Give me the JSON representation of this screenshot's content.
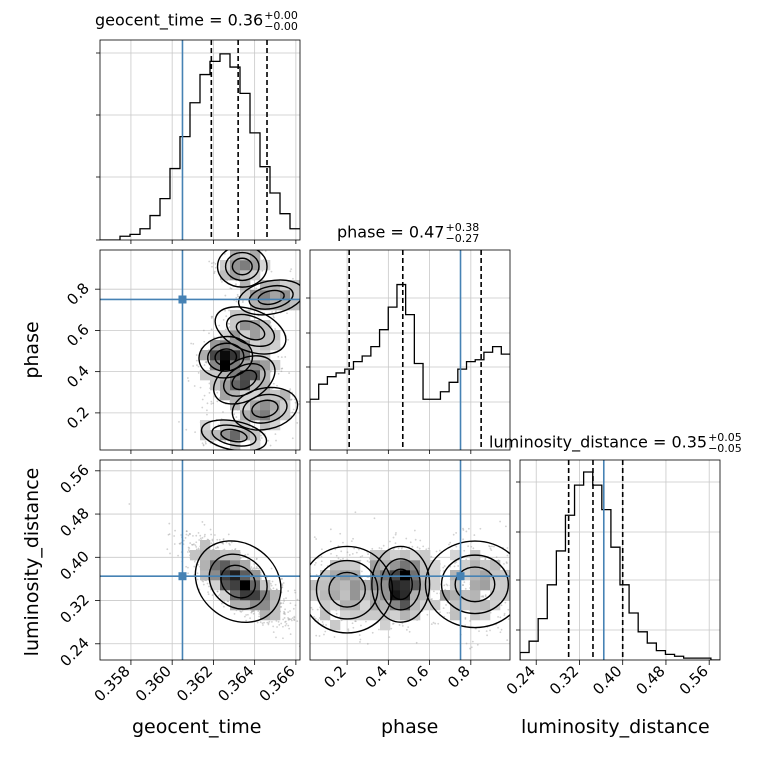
{
  "chart_data": {
    "type": "corner",
    "truth_color": "#4682b4",
    "parameters": [
      {
        "name": "geocent_time",
        "median": "0.36",
        "plus": "+0.00",
        "minus": "−0.00",
        "range": [
          0.3565,
          0.3662
        ],
        "ticks": [
          "0.358",
          "0.360",
          "0.362",
          "0.364",
          "0.366"
        ],
        "tick_values": [
          0.358,
          0.36,
          0.362,
          0.364,
          0.366
        ],
        "truth": 0.3605,
        "quantiles": [
          0.3619,
          0.3632,
          0.3646
        ]
      },
      {
        "name": "phase",
        "median": "0.47",
        "plus": "+0.38",
        "minus": "−0.27",
        "range": [
          0.02,
          0.99
        ],
        "ticks": [
          "0.2",
          "0.4",
          "0.6",
          "0.8"
        ],
        "tick_values": [
          0.2,
          0.4,
          0.6,
          0.8
        ],
        "truth": 0.75,
        "quantiles": [
          0.21,
          0.47,
          0.85
        ]
      },
      {
        "name": "luminosity_distance",
        "median": "0.35",
        "plus": "+0.05",
        "minus": "−0.05",
        "range": [
          0.21,
          0.58
        ],
        "ticks": [
          "0.24",
          "0.32",
          "0.40",
          "0.48",
          "0.56"
        ],
        "tick_values": [
          0.24,
          0.32,
          0.4,
          0.48,
          0.56
        ],
        "truth": 0.365,
        "quantiles": [
          0.3,
          0.345,
          0.4
        ]
      }
    ],
    "hist_geocent_time": [
      0,
      0,
      0.02,
      0.03,
      0.06,
      0.13,
      0.22,
      0.38,
      0.55,
      0.73,
      0.88,
      0.95,
      0.99,
      0.92,
      0.78,
      0.57,
      0.39,
      0.25,
      0.14,
      0.06
    ],
    "hist_phase": [
      0.27,
      0.35,
      0.39,
      0.41,
      0.43,
      0.47,
      0.5,
      0.55,
      0.64,
      0.76,
      0.88,
      0.72,
      0.46,
      0.27,
      0.27,
      0.31,
      0.36,
      0.43,
      0.47,
      0.48,
      0.52,
      0.55,
      0.51
    ],
    "hist_luminosity_distance": [
      0.04,
      0.1,
      0.22,
      0.4,
      0.58,
      0.77,
      0.93,
      1.0,
      0.93,
      0.8,
      0.6,
      0.4,
      0.25,
      0.15,
      0.09,
      0.05,
      0.03,
      0.02,
      0.01,
      0.01,
      0.01,
      0.0
    ]
  }
}
